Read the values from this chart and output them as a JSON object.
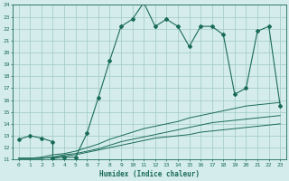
{
  "xlabel": "Humidex (Indice chaleur)",
  "xlim": [
    -0.5,
    23.5
  ],
  "ylim": [
    11,
    24
  ],
  "yticks": [
    11,
    12,
    13,
    14,
    15,
    16,
    17,
    18,
    19,
    20,
    21,
    22,
    23,
    24
  ],
  "xticks": [
    0,
    1,
    2,
    3,
    4,
    5,
    6,
    7,
    8,
    9,
    10,
    11,
    12,
    13,
    14,
    15,
    16,
    17,
    18,
    19,
    20,
    21,
    22,
    23
  ],
  "bg_color": "#d4ecec",
  "grid_color": "#a0c8c8",
  "line_color": "#1a6b5a",
  "line1_x": [
    0,
    1,
    2,
    3,
    3,
    4,
    5,
    6,
    7,
    8,
    9,
    10,
    11,
    12,
    13,
    14,
    15,
    16,
    17,
    18,
    19,
    20,
    21,
    22,
    23
  ],
  "line1_y": [
    12.7,
    13.0,
    12.8,
    12.5,
    11.1,
    11.2,
    11.2,
    13.2,
    16.2,
    19.3,
    22.2,
    22.8,
    24.2,
    22.2,
    22.8,
    22.2,
    20.5,
    22.2,
    22.2,
    21.5,
    16.5,
    17.0,
    21.8,
    22.2,
    15.5
  ],
  "line2_x": [
    0,
    1,
    2,
    3,
    4,
    5,
    6,
    7,
    8,
    9,
    10,
    11,
    12,
    13,
    14,
    15,
    16,
    17,
    18,
    19,
    20,
    21,
    22,
    23
  ],
  "line2_y": [
    11.1,
    11.1,
    11.2,
    11.4,
    11.5,
    11.7,
    12.0,
    12.3,
    12.7,
    13.0,
    13.3,
    13.6,
    13.8,
    14.0,
    14.2,
    14.5,
    14.7,
    14.9,
    15.1,
    15.3,
    15.5,
    15.6,
    15.7,
    15.8
  ],
  "line3_x": [
    0,
    1,
    2,
    3,
    4,
    5,
    6,
    7,
    8,
    9,
    10,
    11,
    12,
    13,
    14,
    15,
    16,
    17,
    18,
    19,
    20,
    21,
    22,
    23
  ],
  "line3_y": [
    11.1,
    11.1,
    11.1,
    11.2,
    11.4,
    11.5,
    11.7,
    11.9,
    12.2,
    12.5,
    12.7,
    12.9,
    13.1,
    13.3,
    13.5,
    13.7,
    13.9,
    14.1,
    14.2,
    14.3,
    14.4,
    14.5,
    14.6,
    14.7
  ],
  "line4_x": [
    0,
    1,
    2,
    3,
    4,
    5,
    6,
    7,
    8,
    9,
    10,
    11,
    12,
    13,
    14,
    15,
    16,
    17,
    18,
    19,
    20,
    21,
    22,
    23
  ],
  "line4_y": [
    11.1,
    11.1,
    11.1,
    11.2,
    11.3,
    11.4,
    11.6,
    11.8,
    12.0,
    12.2,
    12.4,
    12.6,
    12.8,
    12.9,
    13.0,
    13.1,
    13.3,
    13.4,
    13.5,
    13.6,
    13.7,
    13.8,
    13.9,
    14.0
  ]
}
